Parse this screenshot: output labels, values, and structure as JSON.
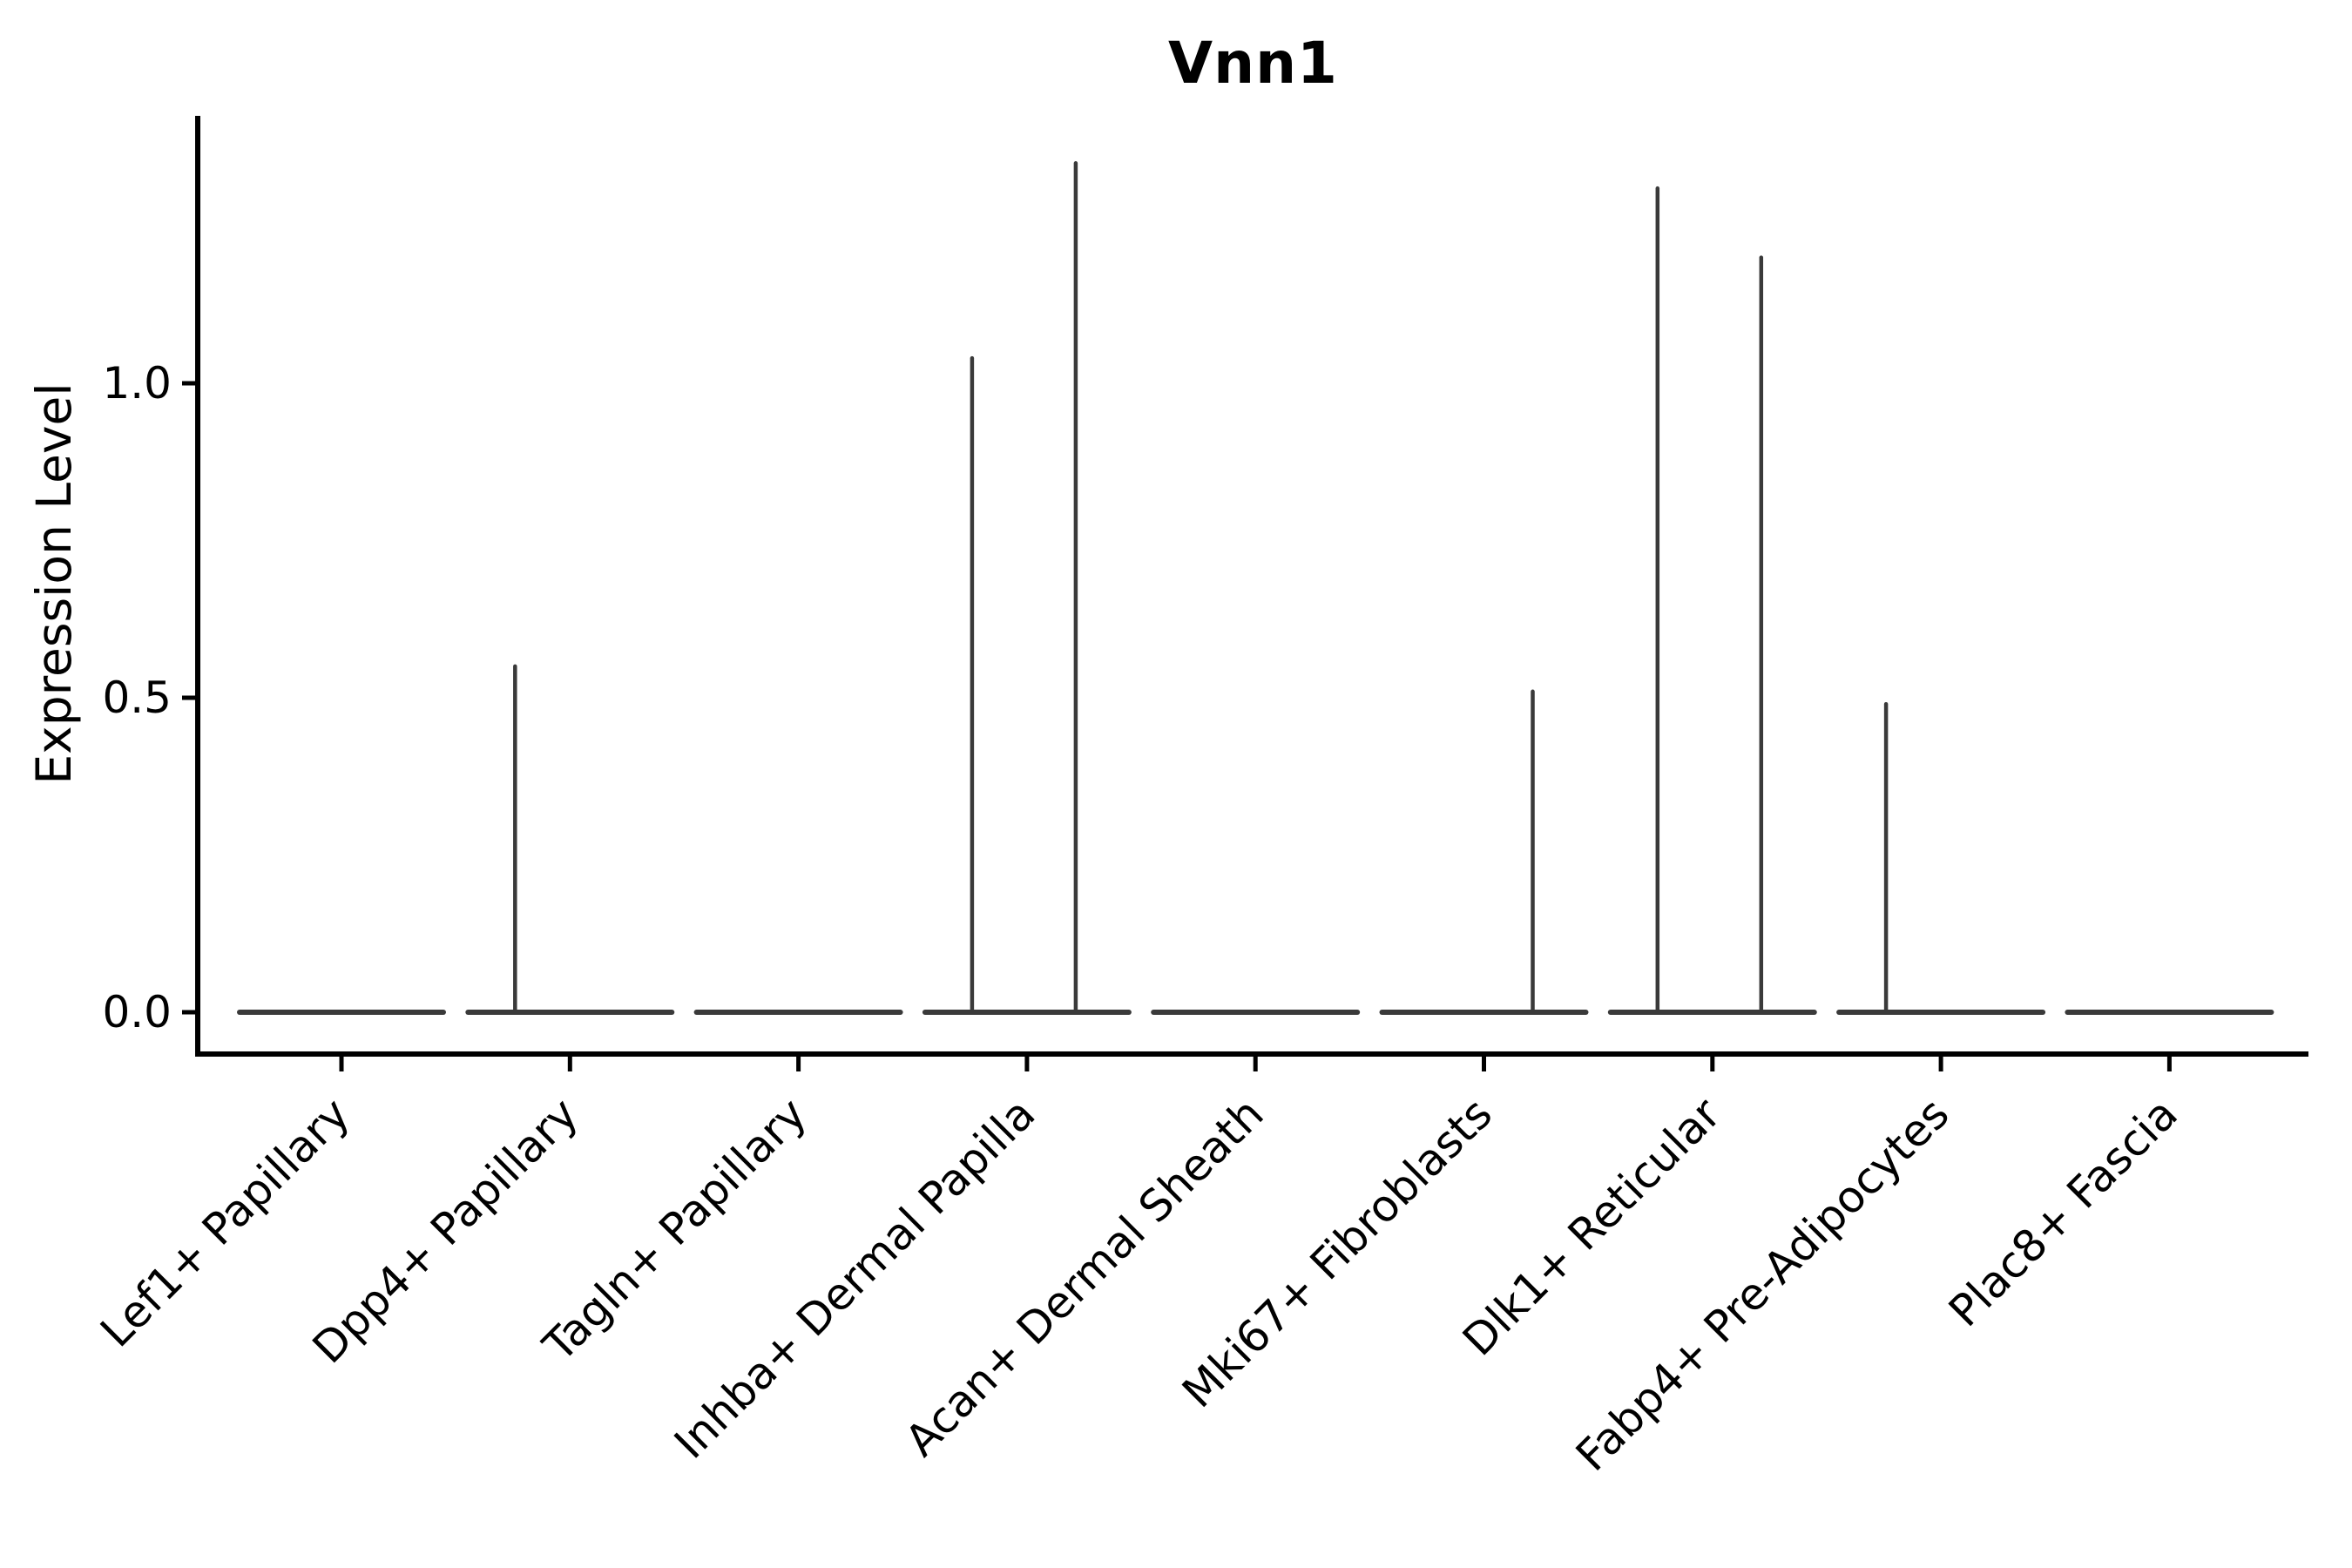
{
  "figure": {
    "title": "Vnn1"
  },
  "chart_data": {
    "type": "violin",
    "title": "Vnn1",
    "xlabel": "",
    "ylabel": "Expression Level",
    "ylim": [
      -0.066,
      1.43
    ],
    "yticks": [
      {
        "label": "0.0",
        "value": 0.0
      },
      {
        "label": "0.5",
        "value": 0.5
      },
      {
        "label": "1.0",
        "value": 1.0
      }
    ],
    "grid": false,
    "legend": null,
    "groups_per_category": 2,
    "categories": [
      "Lef1+ Papillary",
      "Dpp4+ Papillary",
      "Tagln+ Papillary",
      "Inhba+ Dermal Papilla",
      "Acan+ Dermal Sheath",
      "Mki67+ Fibroblasts",
      "Dlk1+ Reticular",
      "Fabp4+ Pre-Adipocytes",
      "Plac8+ Fascia"
    ],
    "violins": [
      {
        "category": "Lef1+ Papillary",
        "baseline_value": 0.0,
        "spikes": []
      },
      {
        "category": "Dpp4+ Papillary",
        "baseline_value": 0.0,
        "spikes": [
          {
            "side": "left",
            "max": 0.55
          }
        ]
      },
      {
        "category": "Tagln+ Papillary",
        "baseline_value": 0.0,
        "spikes": []
      },
      {
        "category": "Inhba+ Dermal Papilla",
        "baseline_value": 0.0,
        "spikes": [
          {
            "side": "left",
            "max": 1.04
          },
          {
            "side": "right",
            "max": 1.35
          }
        ]
      },
      {
        "category": "Acan+ Dermal Sheath",
        "baseline_value": 0.0,
        "spikes": []
      },
      {
        "category": "Mki67+ Fibroblasts",
        "baseline_value": 0.0,
        "spikes": [
          {
            "side": "right",
            "max": 0.51
          }
        ]
      },
      {
        "category": "Dlk1+ Reticular",
        "baseline_value": 0.0,
        "spikes": [
          {
            "side": "left",
            "max": 1.31
          },
          {
            "side": "right",
            "max": 1.2
          }
        ]
      },
      {
        "category": "Fabp4+ Pre-Adipocytes",
        "baseline_value": 0.0,
        "spikes": [
          {
            "side": "left",
            "max": 0.49
          }
        ]
      },
      {
        "category": "Plac8+ Fascia",
        "baseline_value": 0.0,
        "spikes": []
      }
    ],
    "colors": {
      "background": "#ffffff",
      "ink": "#000000",
      "violin_stroke": "#3a3a3a"
    }
  }
}
